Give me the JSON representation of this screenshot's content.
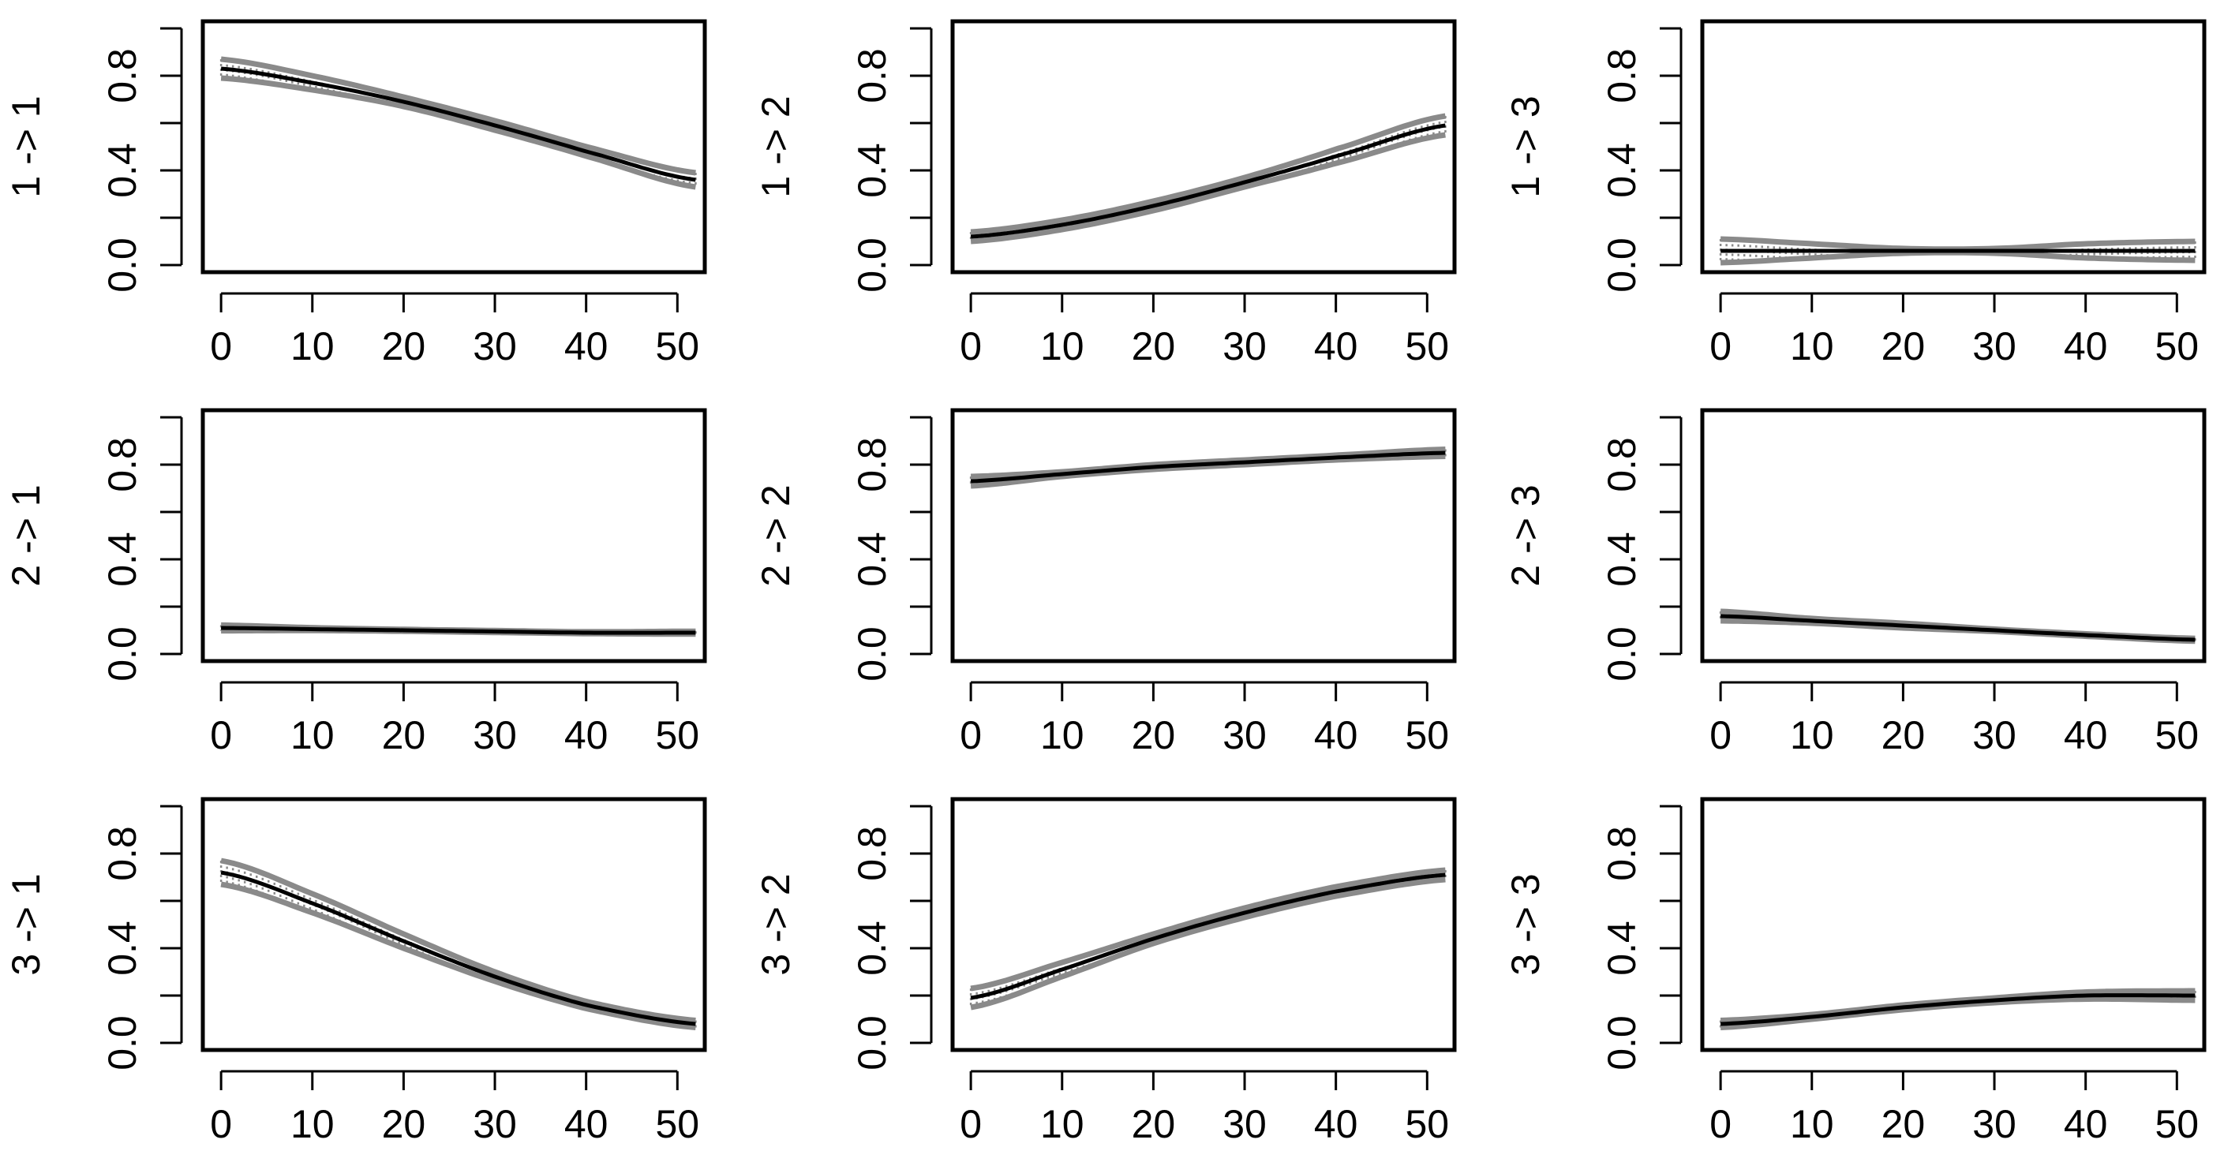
{
  "colors": {
    "estimate": "#000000",
    "band": "#8a8a8a",
    "frame": "#000000",
    "background": "#ffffff"
  },
  "chart_data": [
    {
      "type": "line",
      "ylabel": "1 -> 1",
      "x_ticks": [
        0,
        10,
        20,
        30,
        40,
        50
      ],
      "y_ticks": [
        "0.0",
        "0.4",
        "0.8"
      ],
      "xlim": [
        -2,
        53
      ],
      "ylim": [
        -0.03,
        1.03
      ],
      "x": [
        0,
        10,
        20,
        30,
        40,
        52
      ],
      "values": [
        0.83,
        0.77,
        0.69,
        0.59,
        0.48,
        0.36
      ],
      "band_halfwidth": [
        0.04,
        0.03,
        0.02,
        0.02,
        0.02,
        0.03
      ]
    },
    {
      "type": "line",
      "ylabel": "1 -> 2",
      "x_ticks": [
        0,
        10,
        20,
        30,
        40,
        50
      ],
      "y_ticks": [
        "0.0",
        "0.4",
        "0.8"
      ],
      "xlim": [
        -2,
        53
      ],
      "ylim": [
        -0.03,
        1.03
      ],
      "x": [
        0,
        10,
        20,
        30,
        40,
        52
      ],
      "values": [
        0.12,
        0.17,
        0.25,
        0.35,
        0.46,
        0.59
      ],
      "band_halfwidth": [
        0.02,
        0.02,
        0.02,
        0.02,
        0.03,
        0.04
      ]
    },
    {
      "type": "line",
      "ylabel": "1 -> 3",
      "x_ticks": [
        0,
        10,
        20,
        30,
        40,
        50
      ],
      "y_ticks": [
        "0.0",
        "0.4",
        "0.8"
      ],
      "xlim": [
        -2,
        53
      ],
      "ylim": [
        -0.03,
        1.03
      ],
      "x": [
        0,
        10,
        20,
        30,
        40,
        52
      ],
      "values": [
        0.06,
        0.06,
        0.06,
        0.06,
        0.06,
        0.06
      ],
      "band_halfwidth": [
        0.05,
        0.03,
        0.01,
        0.01,
        0.03,
        0.04
      ]
    },
    {
      "type": "line",
      "ylabel": "2 -> 1",
      "x_ticks": [
        0,
        10,
        20,
        30,
        40,
        50
      ],
      "y_ticks": [
        "0.0",
        "0.4",
        "0.8"
      ],
      "xlim": [
        -2,
        53
      ],
      "ylim": [
        -0.03,
        1.03
      ],
      "x": [
        0,
        10,
        20,
        30,
        40,
        52
      ],
      "values": [
        0.11,
        0.105,
        0.1,
        0.095,
        0.09,
        0.09
      ],
      "band_halfwidth": [
        0.012,
        0.006,
        0.004,
        0.004,
        0.004,
        0.006
      ]
    },
    {
      "type": "line",
      "ylabel": "2 -> 2",
      "x_ticks": [
        0,
        10,
        20,
        30,
        40,
        50
      ],
      "y_ticks": [
        "0.0",
        "0.4",
        "0.8"
      ],
      "xlim": [
        -2,
        53
      ],
      "ylim": [
        -0.03,
        1.03
      ],
      "x": [
        0,
        10,
        20,
        30,
        40,
        52
      ],
      "values": [
        0.73,
        0.76,
        0.79,
        0.81,
        0.83,
        0.85
      ],
      "band_halfwidth": [
        0.02,
        0.01,
        0.01,
        0.01,
        0.01,
        0.015
      ]
    },
    {
      "type": "line",
      "ylabel": "2 -> 3",
      "x_ticks": [
        0,
        10,
        20,
        30,
        40,
        50
      ],
      "y_ticks": [
        "0.0",
        "0.4",
        "0.8"
      ],
      "xlim": [
        -2,
        53
      ],
      "ylim": [
        -0.03,
        1.03
      ],
      "x": [
        0,
        10,
        20,
        30,
        40,
        52
      ],
      "values": [
        0.16,
        0.14,
        0.12,
        0.1,
        0.08,
        0.06
      ],
      "band_halfwidth": [
        0.02,
        0.01,
        0.01,
        0.005,
        0.005,
        0.006
      ]
    },
    {
      "type": "line",
      "ylabel": "3 -> 1",
      "x_ticks": [
        0,
        10,
        20,
        30,
        40,
        50
      ],
      "y_ticks": [
        "0.0",
        "0.4",
        "0.8"
      ],
      "xlim": [
        -2,
        53
      ],
      "ylim": [
        -0.03,
        1.03
      ],
      "x": [
        0,
        10,
        20,
        30,
        40,
        52
      ],
      "values": [
        0.72,
        0.59,
        0.43,
        0.28,
        0.16,
        0.08
      ],
      "band_halfwidth": [
        0.05,
        0.04,
        0.03,
        0.02,
        0.015,
        0.015
      ]
    },
    {
      "type": "line",
      "ylabel": "3 -> 2",
      "x_ticks": [
        0,
        10,
        20,
        30,
        40,
        50
      ],
      "y_ticks": [
        "0.0",
        "0.4",
        "0.8"
      ],
      "xlim": [
        -2,
        53
      ],
      "ylim": [
        -0.03,
        1.03
      ],
      "x": [
        0,
        10,
        20,
        30,
        40,
        52
      ],
      "values": [
        0.19,
        0.31,
        0.44,
        0.55,
        0.64,
        0.71
      ],
      "band_halfwidth": [
        0.04,
        0.03,
        0.02,
        0.02,
        0.02,
        0.02
      ]
    },
    {
      "type": "line",
      "ylabel": "3 -> 3",
      "x_ticks": [
        0,
        10,
        20,
        30,
        40,
        50
      ],
      "y_ticks": [
        "0.0",
        "0.4",
        "0.8"
      ],
      "xlim": [
        -2,
        53
      ],
      "ylim": [
        -0.03,
        1.03
      ],
      "x": [
        0,
        10,
        20,
        30,
        40,
        52
      ],
      "values": [
        0.08,
        0.11,
        0.15,
        0.18,
        0.2,
        0.2
      ],
      "band_halfwidth": [
        0.015,
        0.01,
        0.01,
        0.01,
        0.015,
        0.02
      ]
    }
  ]
}
